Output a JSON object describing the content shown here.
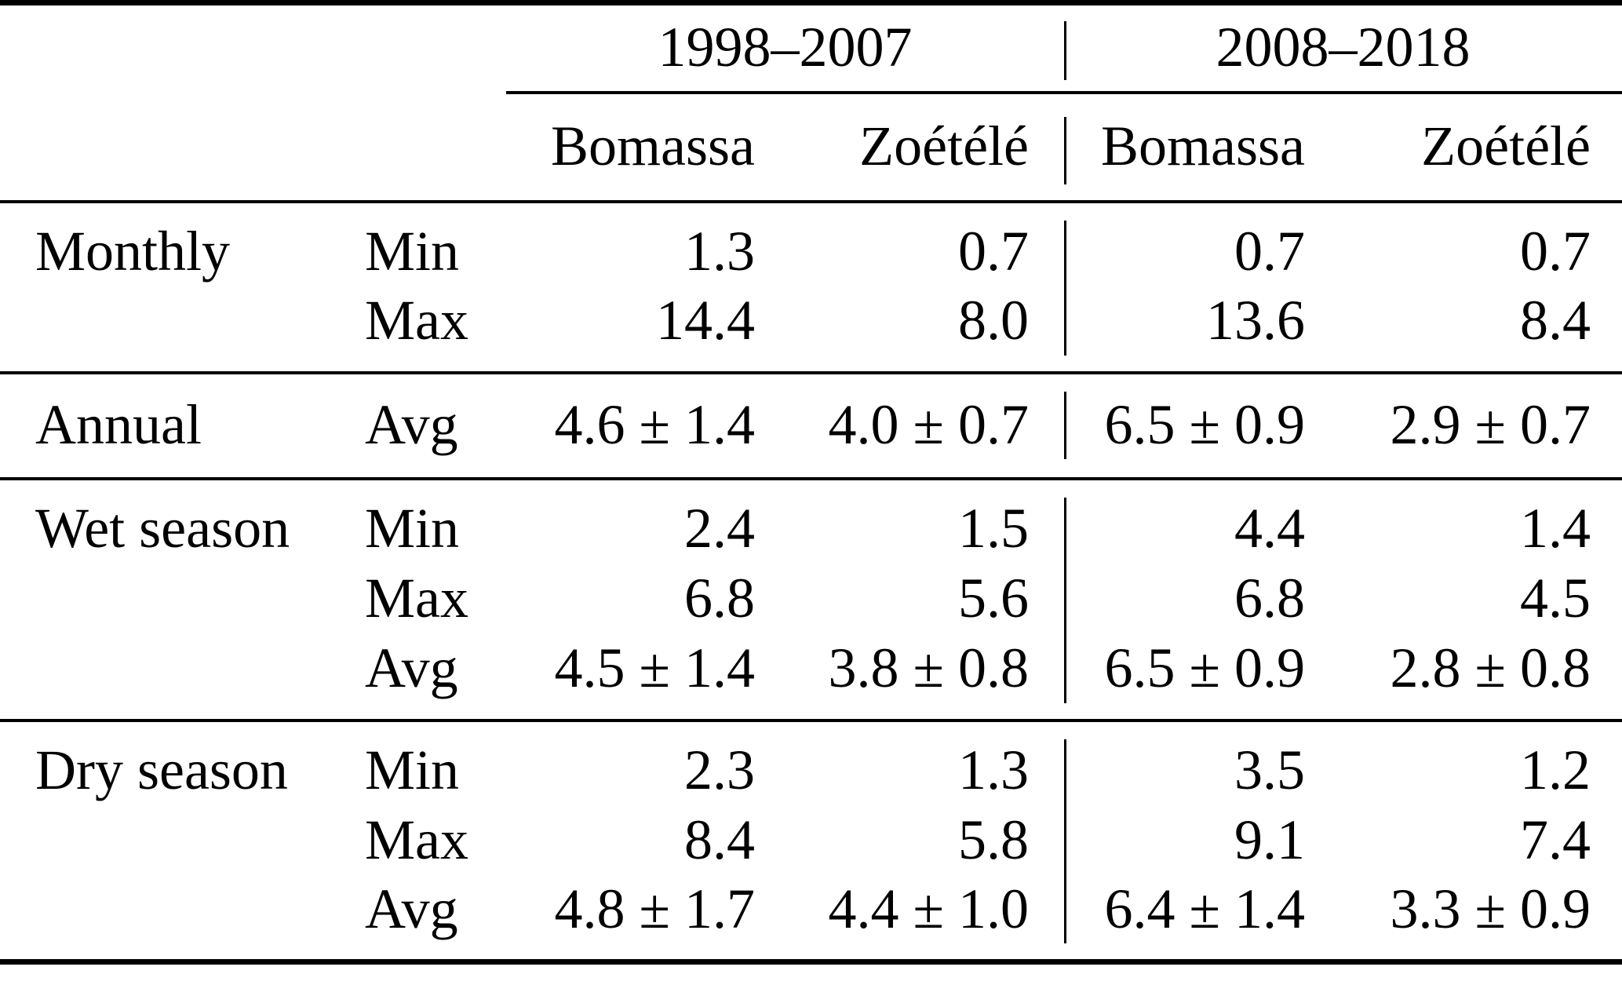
{
  "table": {
    "col_groups": [
      {
        "label": "1998–2007",
        "columns": [
          "Bomassa",
          "Zoétélé"
        ]
      },
      {
        "label": "2008–2018",
        "columns": [
          "Bomassa",
          "Zoétélé"
        ]
      }
    ],
    "row_groups": [
      {
        "label": "Monthly",
        "rows": [
          {
            "stat": "Min",
            "values": [
              "1.3",
              "0.7",
              "0.7",
              "0.7"
            ]
          },
          {
            "stat": "Max",
            "values": [
              "14.4",
              "8.0",
              "13.6",
              "8.4"
            ]
          }
        ]
      },
      {
        "label": "Annual",
        "rows": [
          {
            "stat": "Avg",
            "values": [
              "4.6 ± 1.4",
              "4.0 ± 0.7",
              "6.5 ± 0.9",
              "2.9 ± 0.7"
            ]
          }
        ]
      },
      {
        "label": "Wet season",
        "rows": [
          {
            "stat": "Min",
            "values": [
              "2.4",
              "1.5",
              "4.4",
              "1.4"
            ]
          },
          {
            "stat": "Max",
            "values": [
              "6.8",
              "5.6",
              "6.8",
              "4.5"
            ]
          },
          {
            "stat": "Avg",
            "values": [
              "4.5 ± 1.4",
              "3.8 ± 0.8",
              "6.5 ± 0.9",
              "2.8 ± 0.8"
            ]
          }
        ]
      },
      {
        "label": "Dry season",
        "rows": [
          {
            "stat": "Min",
            "values": [
              "2.3",
              "1.3",
              "3.5",
              "1.2"
            ]
          },
          {
            "stat": "Max",
            "values": [
              "8.4",
              "5.8",
              "9.1",
              "7.4"
            ]
          },
          {
            "stat": "Avg",
            "values": [
              "4.8 ± 1.7",
              "4.4 ± 1.0",
              "6.4 ± 1.4",
              "3.3 ± 0.9"
            ]
          }
        ]
      }
    ],
    "colors": {
      "text": "#000000",
      "rule": "#000000",
      "background": "#ffffff"
    }
  }
}
